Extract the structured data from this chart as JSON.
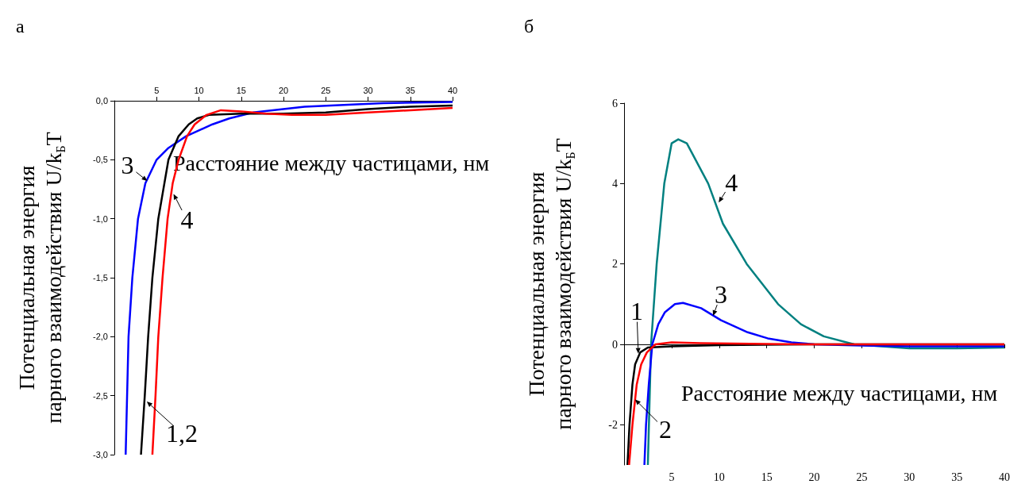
{
  "chart_data": [
    {
      "type": "line",
      "title": "а",
      "xlabel": "Расстояние между частицами, нм",
      "ylabel": "Потенциальная энергия\nпарного взаимодействия U/k$_{Б}$T",
      "xlim": [
        0,
        40
      ],
      "xticks": [
        5,
        10,
        15,
        20,
        25,
        30,
        35,
        40
      ],
      "ylim": [
        -3,
        0
      ],
      "yticks": [
        {
          "value": -3,
          "label": "-3,0"
        },
        {
          "value": -2.5,
          "label": "-2,5"
        },
        {
          "value": -2,
          "label": "-2,0"
        },
        {
          "value": -1.5,
          "label": "-1,5"
        },
        {
          "value": -1,
          "label": "-1,0"
        },
        {
          "value": -0.5,
          "label": "-0,5"
        },
        {
          "value": 0,
          "label": "0,0"
        }
      ],
      "series": [
        {
          "color": "#0000ff",
          "x": [
            1.34,
            1.68,
            2.13,
            2.8,
            3.67,
            5.0,
            6.4,
            8.5,
            11.6,
            13.6,
            16.4,
            22.5,
            31.8,
            40
          ],
          "values": [
            -3,
            -2,
            -1.5,
            -1,
            -0.7,
            -0.5,
            -0.4,
            -0.3,
            -0.2,
            -0.15,
            -0.1,
            -0.05,
            -0.02,
            -0.01
          ]
        },
        {
          "color": "#000000",
          "x": [
            3.15,
            3.6,
            4.0,
            4.5,
            5.2,
            6.4,
            7.6,
            8.8,
            9.8,
            11.2,
            15,
            20,
            25,
            30,
            35,
            40
          ],
          "values": [
            -3,
            -2.5,
            -2,
            -1.5,
            -1,
            -0.5,
            -0.3,
            -0.2,
            -0.15,
            -0.12,
            -0.11,
            -0.11,
            -0.1,
            -0.07,
            -0.05,
            -0.04
          ]
        },
        {
          "color": "#ff0000",
          "x": [
            4.5,
            4.87,
            5.2,
            5.7,
            6.3,
            6.9,
            7.6,
            8.6,
            9.5,
            10.9,
            12.6,
            15,
            18,
            21,
            25,
            30,
            35,
            40
          ],
          "values": [
            -3,
            -2.5,
            -2,
            -1.5,
            -1,
            -0.7,
            -0.5,
            -0.3,
            -0.2,
            -0.12,
            -0.08,
            -0.09,
            -0.11,
            -0.12,
            -0.12,
            -0.1,
            -0.08,
            -0.06
          ]
        }
      ],
      "annotations": [
        {
          "text": "3",
          "x": 3.9,
          "y": -0.68
        },
        {
          "text": "4",
          "x": 7.0,
          "y": -0.79
        },
        {
          "text": "1,2",
          "x": 3.84,
          "y": -2.55
        }
      ]
    },
    {
      "type": "line",
      "title": "б",
      "xlabel": "Расстояние между частицами, нм",
      "ylabel": "Потенциальная энергия\nпарного взаимодействия U/k$_{Б}$T",
      "xlim": [
        0,
        40
      ],
      "xticks": [
        5,
        10,
        15,
        20,
        25,
        30,
        35,
        40
      ],
      "ylim": [
        -3,
        6
      ],
      "yticks": [
        -2,
        0,
        2,
        4,
        6
      ],
      "series": [
        {
          "color": "#008080",
          "x": [
            2.5,
            2.84,
            3.43,
            4.23,
            5.0,
            5.7,
            6.6,
            8.85,
            10.4,
            12.9,
            16.2,
            18.6,
            21,
            24.2,
            30,
            35,
            40
          ],
          "values": [
            -3,
            0,
            2,
            4,
            5,
            5.1,
            5,
            4,
            3,
            2,
            1,
            0.5,
            0.2,
            0,
            -0.1,
            -0.1,
            -0.08
          ]
        },
        {
          "color": "#0000ff",
          "x": [
            2.14,
            2.31,
            2.6,
            2.97,
            3.6,
            4.3,
            5.35,
            6.2,
            8.1,
            10.2,
            13.0,
            15.1,
            17.6,
            20,
            25,
            30,
            40
          ],
          "values": [
            -3,
            -2,
            -1,
            0,
            0.5,
            0.8,
            1.0,
            1.03,
            0.9,
            0.6,
            0.3,
            0.15,
            0.05,
            0,
            -0.03,
            -0.05,
            -0.05
          ]
        },
        {
          "color": "#000000",
          "x": [
            0.36,
            0.57,
            0.88,
            1.16,
            1.7,
            2.5,
            5,
            10,
            20,
            40
          ],
          "values": [
            -3,
            -2,
            -1,
            -0.5,
            -0.2,
            -0.08,
            -0.05,
            -0.02,
            0,
            0
          ]
        },
        {
          "color": "#ff0000",
          "x": [
            0.53,
            0.88,
            1.33,
            1.8,
            2.4,
            3.3,
            5,
            8,
            15,
            20,
            40
          ],
          "values": [
            -3,
            -2,
            -1,
            -0.5,
            -0.2,
            0,
            0.05,
            0.03,
            0.01,
            0,
            0
          ]
        }
      ],
      "annotations": [
        {
          "text": "1",
          "x": 1.5,
          "y": -0.23
        },
        {
          "text": "2",
          "x": 1.16,
          "y": -1.37
        },
        {
          "text": "3",
          "x": 9.36,
          "y": 0.71
        },
        {
          "text": "4",
          "x": 9.95,
          "y": 3.53
        }
      ]
    }
  ]
}
